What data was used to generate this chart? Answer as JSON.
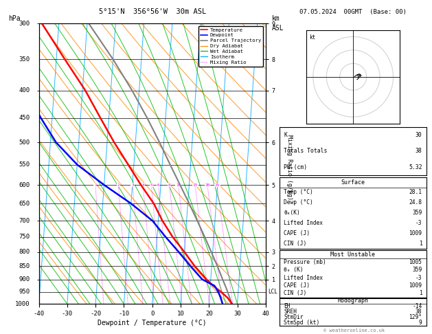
{
  "title_left": "5°15'N  356°56'W  30m ASL",
  "title_right": "07.05.2024  00GMT  (Base: 00)",
  "xlabel": "Dewpoint / Temperature (°C)",
  "ylabel_left": "hPa",
  "pressure_levels": [
    300,
    350,
    400,
    450,
    500,
    550,
    600,
    650,
    700,
    750,
    800,
    850,
    900,
    950,
    1000
  ],
  "xlim": [
    -40,
    40
  ],
  "temp_profile_p": [
    1000,
    975,
    950,
    925,
    900,
    850,
    800,
    750,
    700,
    650,
    600,
    550,
    500,
    450,
    400,
    350,
    300
  ],
  "temp_profile_t": [
    28.1,
    26.5,
    24.0,
    21.0,
    18.5,
    14.0,
    10.0,
    5.5,
    1.5,
    -2.0,
    -7.0,
    -12.0,
    -17.5,
    -23.0,
    -29.0,
    -37.0,
    -46.0
  ],
  "dewp_profile_p": [
    1000,
    975,
    950,
    925,
    900,
    850,
    800,
    750,
    700,
    650,
    600,
    550,
    500,
    450,
    400,
    350,
    300
  ],
  "dewp_profile_t": [
    24.8,
    24.0,
    23.0,
    21.5,
    17.0,
    12.5,
    8.0,
    3.0,
    -2.0,
    -10.0,
    -20.0,
    -30.0,
    -38.0,
    -44.0,
    -50.0,
    -58.0,
    -65.0
  ],
  "parcel_profile_p": [
    1000,
    975,
    950,
    925,
    900,
    850,
    800,
    750,
    700,
    650,
    600,
    550,
    500,
    450,
    400,
    350,
    300
  ],
  "parcel_profile_t": [
    28.1,
    27.2,
    26.3,
    25.3,
    24.2,
    22.0,
    19.5,
    16.8,
    13.8,
    10.5,
    6.8,
    2.8,
    -1.5,
    -6.5,
    -12.5,
    -20.0,
    -29.5
  ],
  "mixing_ratio_vals": [
    1,
    2,
    3,
    4,
    5,
    6,
    8,
    10,
    15,
    20,
    25
  ],
  "colors": {
    "temperature": "#ff0000",
    "dewpoint": "#0000ff",
    "parcel": "#808080",
    "dry_adiabat": "#ff8800",
    "wet_adiabat": "#00bb00",
    "isotherm": "#00aaff",
    "mixing_ratio": "#ff00ff",
    "background": "#ffffff"
  },
  "lcl_pressure": 950,
  "km_pressures": [
    300,
    350,
    400,
    500,
    600,
    700,
    800,
    850,
    900
  ],
  "km_labels": [
    "9",
    "8",
    "7",
    "6",
    "5",
    "4",
    "3",
    "2",
    "1"
  ],
  "skew_factor": 13.5,
  "info_K": 30,
  "info_TT": 38,
  "info_PW": "5.32",
  "surf_temp": "28.1",
  "surf_dewp": "24.8",
  "surf_theta_e": 359,
  "surf_LI": -3,
  "surf_CAPE": 1009,
  "surf_CIN": 1,
  "mu_pressure": 1005,
  "mu_theta_e": 359,
  "mu_LI": -3,
  "mu_CAPE": 1009,
  "mu_CIN": 1,
  "hodo_EH": -14,
  "hodo_SREH": 38,
  "hodo_StmDir": "129°",
  "hodo_StmSpd": 9,
  "copyright": "© weatheronline.co.uk"
}
